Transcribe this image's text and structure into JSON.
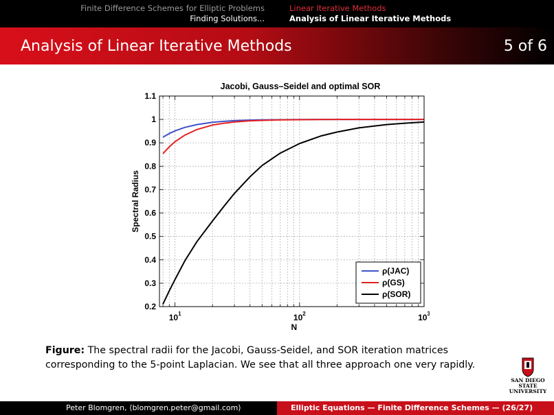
{
  "header": {
    "left_line1": "Finite Difference Schemes for Elliptic Problems",
    "left_line2": "Finding Solutions...",
    "right_line1": "Linear Iterative Methods",
    "right_line2": "Analysis of Linear Iterative Methods"
  },
  "frame": {
    "title": "Analysis of Linear Iterative Methods",
    "page": "5 of 6"
  },
  "chart_data": {
    "type": "line",
    "title": "Jacobi, Gauss–Seidel and optimal SOR",
    "xlabel": "N",
    "ylabel": "Spectral Radius",
    "xscale": "log",
    "xlim": [
      7.5,
      1000
    ],
    "ylim": [
      0.2,
      1.1
    ],
    "yticks": [
      "0.2",
      "0.3",
      "0.4",
      "0.5",
      "0.6",
      "0.7",
      "0.8",
      "0.9",
      "1",
      "1.1"
    ],
    "xticks": [
      {
        "base": "10",
        "exp": "1"
      },
      {
        "base": "10",
        "exp": "2"
      },
      {
        "base": "10",
        "exp": "3"
      }
    ],
    "grid": true,
    "legend_position": "bottom-right",
    "x": [
      8,
      9,
      10,
      12,
      15,
      20,
      25,
      30,
      40,
      50,
      70,
      100,
      150,
      200,
      300,
      500,
      700,
      1000
    ],
    "series": [
      {
        "name": "ρ(JAC)",
        "color": "#3f51c8",
        "values": [
          0.924,
          0.94,
          0.951,
          0.966,
          0.978,
          0.988,
          0.992,
          0.995,
          0.997,
          0.998,
          0.999,
          0.9995,
          0.9998,
          0.9999,
          1.0,
          1.0,
          1.0,
          1.0
        ]
      },
      {
        "name": "ρ(GS)",
        "color": "#e42020",
        "values": [
          0.854,
          0.883,
          0.905,
          0.933,
          0.957,
          0.976,
          0.984,
          0.989,
          0.994,
          0.996,
          0.998,
          0.999,
          0.9996,
          0.9998,
          0.9999,
          1.0,
          1.0,
          1.0
        ]
      },
      {
        "name": "ρ(SOR)",
        "color": "#000000",
        "values": [
          0.211,
          0.268,
          0.316,
          0.396,
          0.478,
          0.566,
          0.632,
          0.684,
          0.755,
          0.803,
          0.856,
          0.897,
          0.93,
          0.946,
          0.964,
          0.978,
          0.984,
          0.989
        ]
      }
    ]
  },
  "caption": {
    "label": "Figure:",
    "text": "The spectral radii for the Jacobi, Gauss-Seidel, and SOR iteration matrices corresponding to the 5-point Laplacian. We see that all three approach one very rapidly."
  },
  "logo": {
    "line1": "SAN DIEGO STATE",
    "line2": "UNIVERSITY"
  },
  "footer": {
    "left": "Peter Blomgren, ⟨blomgren.peter@gmail.com⟩",
    "right": "Elliptic Equations — Finite Difference Schemes — (26/27)"
  }
}
